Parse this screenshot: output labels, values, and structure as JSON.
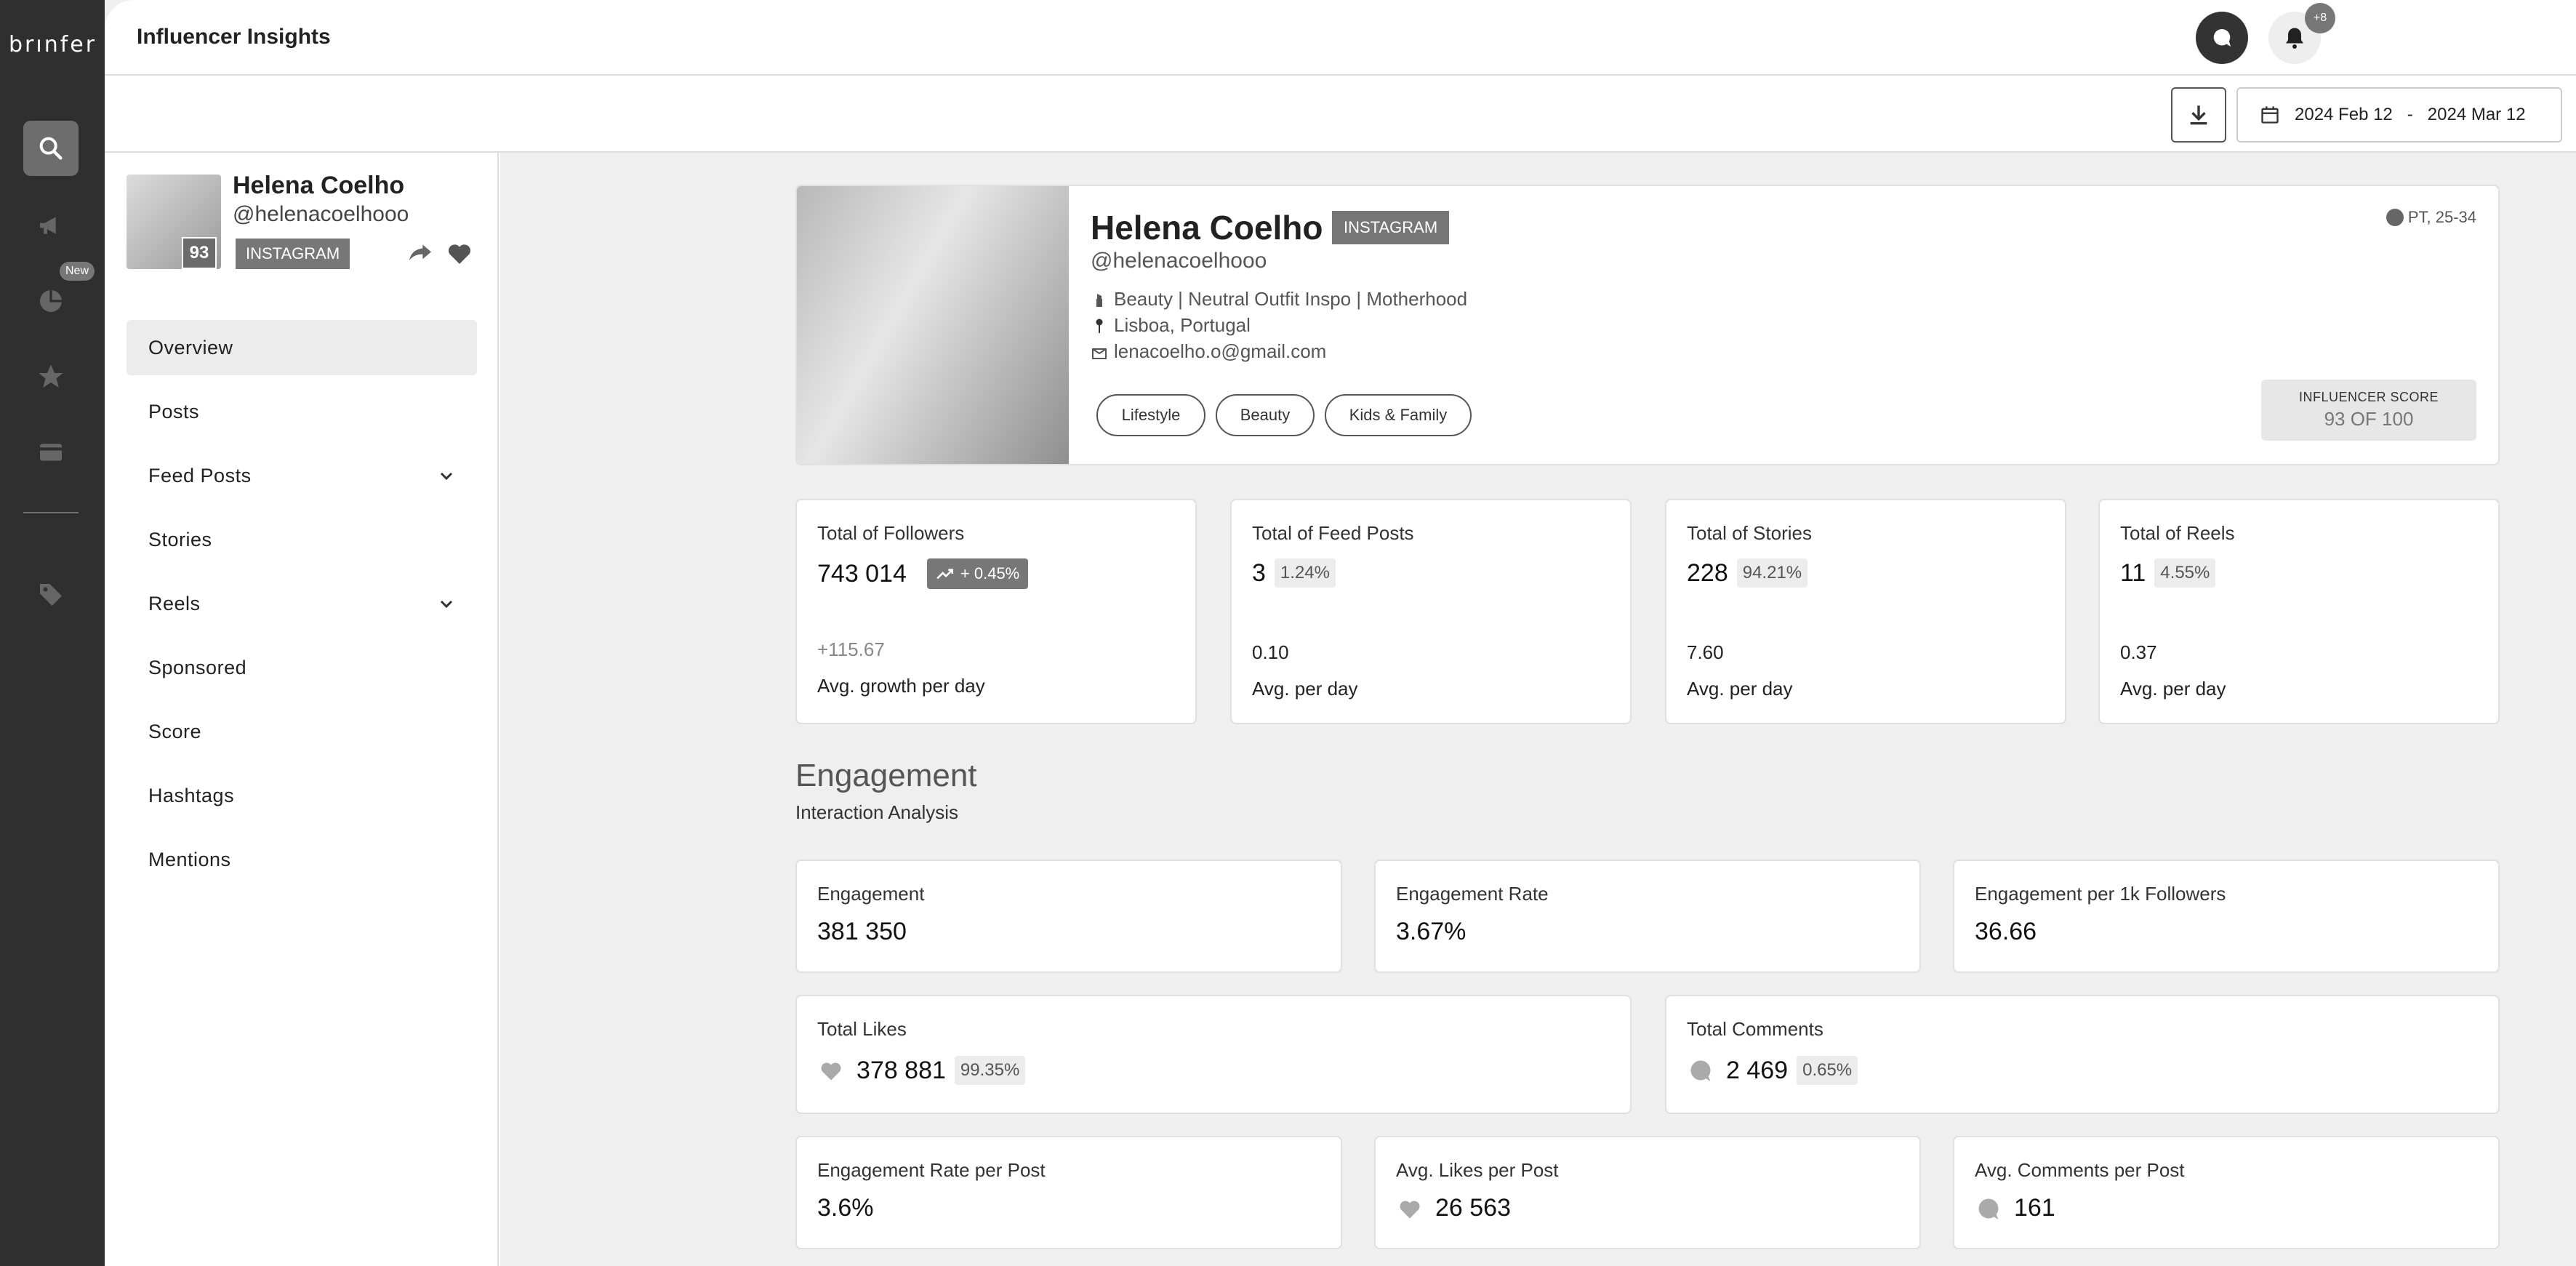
{
  "brand": "brınfer",
  "rail": {
    "new_badge": "New",
    "icons": [
      "search-icon",
      "megaphone-icon",
      "pie-chart-icon",
      "star-icon",
      "card-icon",
      "tag-icon"
    ]
  },
  "header": {
    "title": "Influencer Insights",
    "notif_count": "+8"
  },
  "toolbar": {
    "date_from": "2024 Feb 12",
    "date_sep": "-",
    "date_to": "2024 Mar 12"
  },
  "sidebar": {
    "profile": {
      "name": "Helena Coelho",
      "handle": "@helenacoelhooo",
      "score": "93",
      "platform": "INSTAGRAM"
    },
    "nav": [
      {
        "label": "Overview"
      },
      {
        "label": "Posts"
      },
      {
        "label": "Feed Posts"
      },
      {
        "label": "Stories"
      },
      {
        "label": "Reels"
      },
      {
        "label": "Sponsored"
      },
      {
        "label": "Score"
      },
      {
        "label": "Hashtags"
      },
      {
        "label": "Mentions"
      }
    ]
  },
  "hero": {
    "name": "Helena Coelho",
    "platform": "INSTAGRAM",
    "handle": "@helenacoelhooo",
    "categories": "Beauty | Neutral Outfit Inspo | Motherhood",
    "location": "Lisboa, Portugal",
    "email": "lenacoelho.o@gmail.com",
    "tags": [
      "Lifestyle",
      "Beauty",
      "Kids & Family"
    ],
    "audience": "PT, 25-34",
    "score_label": "INFLUENCER SCORE",
    "score_value": "93 OF 100"
  },
  "stats": [
    {
      "label": "Total of Followers",
      "value": "743 014",
      "badge": "+ 0.45%",
      "sub_value": "+115.67",
      "sub_label": "Avg. growth per day"
    },
    {
      "label": "Total of Feed Posts",
      "value": "3",
      "badge": "1.24%",
      "sub_value": "0.10",
      "sub_label": "Avg. per day"
    },
    {
      "label": "Total of Stories",
      "value": "228",
      "badge": "94.21%",
      "sub_value": "7.60",
      "sub_label": "Avg. per day"
    },
    {
      "label": "Total of Reels",
      "value": "11",
      "badge": "4.55%",
      "sub_value": "0.37",
      "sub_label": "Avg. per day"
    }
  ],
  "engagement": {
    "title": "Engagement",
    "subtitle": "Interaction Analysis",
    "metrics": [
      {
        "label": "Engagement",
        "value": "381 350"
      },
      {
        "label": "Engagement Rate",
        "value": "3.67%"
      },
      {
        "label": "Engagement per 1k Followers",
        "value": "36.66"
      },
      {
        "label": "Total Likes",
        "value": "378 881",
        "badge": "99.35%"
      },
      {
        "label": "Total Comments",
        "value": "2 469",
        "badge": "0.65%"
      },
      {
        "label": "Engagement Rate per Post",
        "value": "3.6%"
      },
      {
        "label": "Avg. Likes per Post",
        "value": "26 563"
      },
      {
        "label": "Avg. Comments per Post",
        "value": "161"
      }
    ]
  }
}
